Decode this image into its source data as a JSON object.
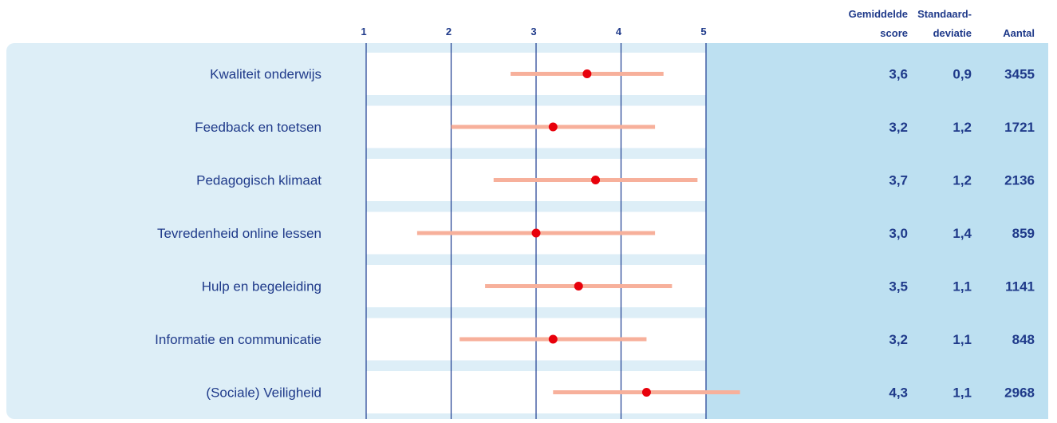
{
  "chart_data": {
    "type": "scatter",
    "title": "",
    "xlabel": "",
    "ylabel": "",
    "xlim": [
      1,
      5
    ],
    "x_ticks": [
      "1",
      "2",
      "3",
      "4",
      "5"
    ],
    "columns": {
      "mean_header_line1": "Gemiddelde",
      "mean_header_line2": "score",
      "sd_header_line1": "Standaard-",
      "sd_header_line2": "deviatie",
      "count_header": "Aantal"
    },
    "rows": [
      {
        "label": "Kwaliteit onderwijs",
        "mean": 3.6,
        "sd": 0.9,
        "count": 3455,
        "mean_text": "3,6",
        "sd_text": "0,9",
        "count_text": "3455"
      },
      {
        "label": "Feedback en toetsen",
        "mean": 3.2,
        "sd": 1.2,
        "count": 1721,
        "mean_text": "3,2",
        "sd_text": "1,2",
        "count_text": "1721"
      },
      {
        "label": "Pedagogisch klimaat",
        "mean": 3.7,
        "sd": 1.2,
        "count": 2136,
        "mean_text": "3,7",
        "sd_text": "1,2",
        "count_text": "2136"
      },
      {
        "label": "Tevredenheid online lessen",
        "mean": 3.0,
        "sd": 1.4,
        "count": 859,
        "mean_text": "3,0",
        "sd_text": "1,4",
        "count_text": "859"
      },
      {
        "label": "Hulp en begeleiding",
        "mean": 3.5,
        "sd": 1.1,
        "count": 1141,
        "mean_text": "3,5",
        "sd_text": "1,1",
        "count_text": "1141"
      },
      {
        "label": "Informatie en communicatie",
        "mean": 3.2,
        "sd": 1.1,
        "count": 848,
        "mean_text": "3,2",
        "sd_text": "1,1",
        "count_text": "848"
      },
      {
        "label": "(Sociale) Veiligheid",
        "mean": 4.3,
        "sd": 1.1,
        "count": 2968,
        "mean_text": "4,3",
        "sd_text": "1,1",
        "count_text": "2968"
      }
    ],
    "colors": {
      "outer_panel": "#ddeef7",
      "stats_panel": "#bde0f1",
      "plot_background": "#ffffff",
      "gridline": "#1a3a8f",
      "range_bar": "#f7b09b",
      "mean_point": "#e8000b",
      "text": "#1f3a8a"
    }
  }
}
